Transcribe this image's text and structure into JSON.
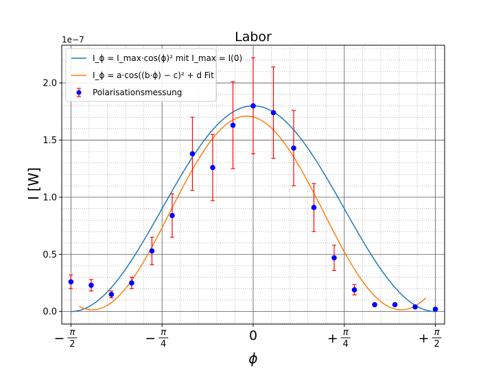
{
  "chart_data": {
    "type": "line",
    "title": "Labor",
    "xlabel": "ϕ",
    "ylabel": "I [W]",
    "y_scale_label": "1e−7",
    "xlim": [
      -1.65,
      1.65
    ],
    "ylim": [
      -0.11,
      2.33
    ],
    "y_scale": 1e-07,
    "x_ticks": [
      {
        "value": -1.5708,
        "label": "−π/2"
      },
      {
        "value": -0.7854,
        "label": "−π/4"
      },
      {
        "value": 0,
        "label": "0"
      },
      {
        "value": 0.7854,
        "label": "+π/4"
      },
      {
        "value": 1.5708,
        "label": "+π/2"
      }
    ],
    "y_ticks": [
      {
        "value": 0.0,
        "label": "0.0"
      },
      {
        "value": 0.5,
        "label": "0.5"
      },
      {
        "value": 1.0,
        "label": "1.0"
      },
      {
        "value": 1.5,
        "label": "1.5"
      },
      {
        "value": 2.0,
        "label": "2.0"
      }
    ],
    "grid": true,
    "legend_position": "top-left",
    "series": [
      {
        "name": "I_ϕ = I_max·cos(ϕ)² mit I_max = I(0)",
        "kind": "model",
        "color": "#1f77b4",
        "I_max": 1.8,
        "phase": 0
      },
      {
        "name": "I_ϕ = a·cos((b·ϕ) − c)² + d Fit",
        "kind": "fit",
        "color": "#ff7f0e",
        "a": 1.695,
        "b": 1.18,
        "c": -0.065,
        "d": 0.015,
        "x_range": [
          -1.5,
          1.49
        ]
      },
      {
        "name": "Polarisationsmessung",
        "kind": "errorbar",
        "color": "#0000ff",
        "error_color": "#ff0000",
        "x": [
          -1.5708,
          -1.3963,
          -1.2217,
          -1.0472,
          -0.8727,
          -0.6981,
          -0.5236,
          -0.3491,
          -0.1745,
          0.0,
          0.1745,
          0.3491,
          0.5236,
          0.6981,
          0.8727,
          1.0472,
          1.2217,
          1.3963,
          1.5708
        ],
        "y": [
          0.26,
          0.23,
          0.15,
          0.25,
          0.53,
          0.84,
          1.38,
          1.26,
          1.63,
          1.8,
          1.74,
          1.43,
          0.91,
          0.47,
          0.19,
          0.06,
          0.06,
          0.04,
          0.02
        ],
        "yerr": [
          0.06,
          0.05,
          0.03,
          0.05,
          0.12,
          0.19,
          0.32,
          0.29,
          0.38,
          0.42,
          0.4,
          0.33,
          0.21,
          0.11,
          0.045,
          0.01,
          0.01,
          0.005,
          0.004
        ]
      }
    ]
  }
}
